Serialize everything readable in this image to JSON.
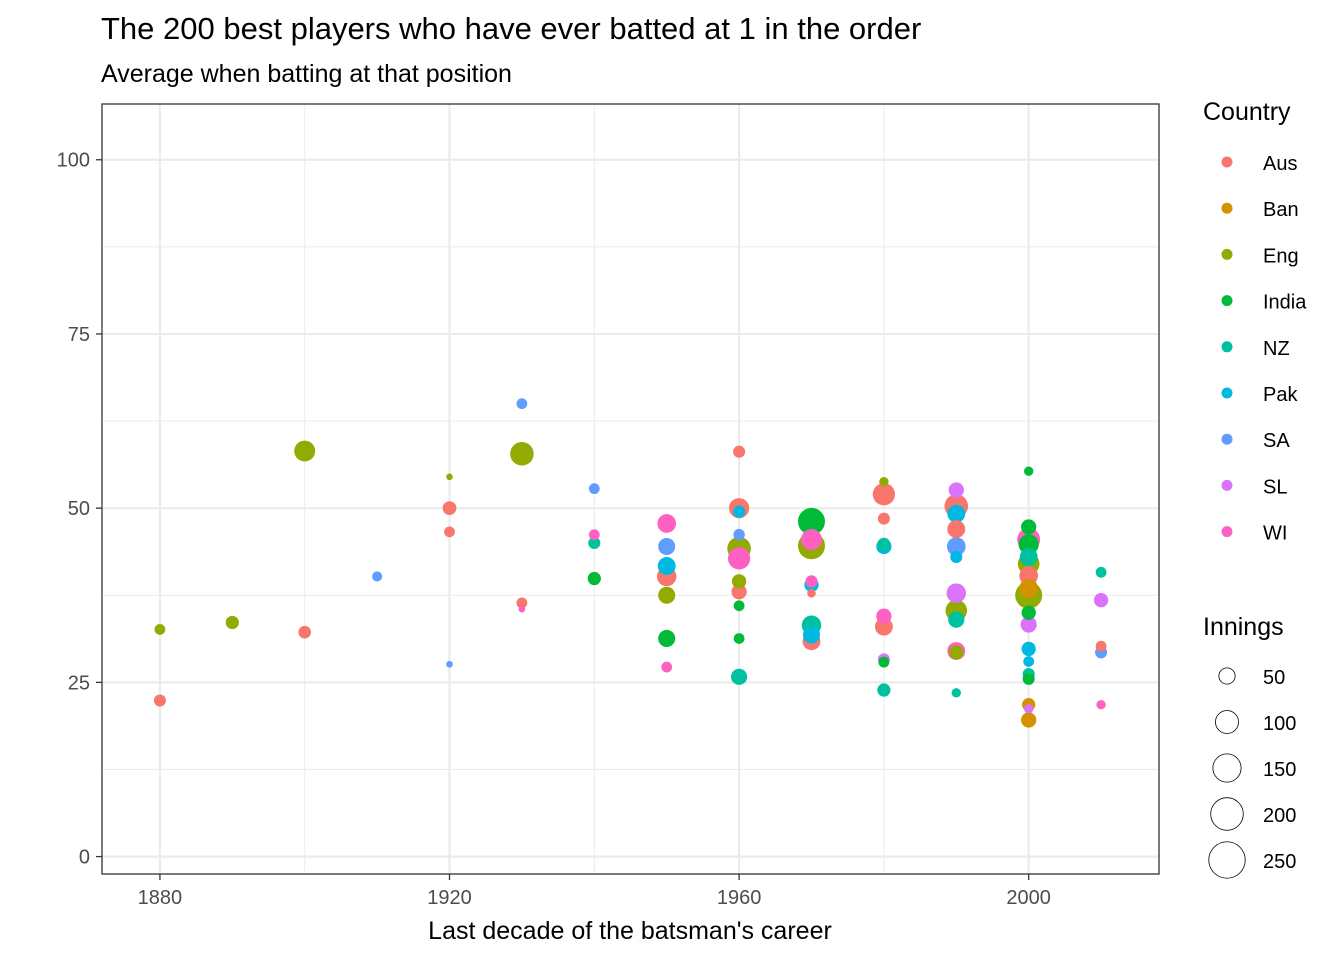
{
  "chart_data": {
    "type": "scatter",
    "title": "The 200 best players who have ever batted at 1 in the order",
    "subtitle": "Average when batting at that position",
    "xlabel": "Last decade of the batsman's career",
    "ylabel": "",
    "xlim": [
      1872,
      2018
    ],
    "ylim": [
      -2.5,
      108
    ],
    "x_ticks": [
      1880,
      1920,
      1960,
      2000
    ],
    "y_ticks": [
      0,
      25,
      50,
      75,
      100
    ],
    "grid": true,
    "legend_placement": "right",
    "color_legend": {
      "title": "Country",
      "entries": [
        {
          "label": "Aus",
          "color": "#F8766D"
        },
        {
          "label": "Ban",
          "color": "#D39200"
        },
        {
          "label": "Eng",
          "color": "#93AA00"
        },
        {
          "label": "India",
          "color": "#00BA38"
        },
        {
          "label": "NZ",
          "color": "#00C19F"
        },
        {
          "label": "Pak",
          "color": "#00B9E3"
        },
        {
          "label": "SA",
          "color": "#619CFF"
        },
        {
          "label": "SL",
          "color": "#DB72FB"
        },
        {
          "label": "WI",
          "color": "#FF61C3"
        }
      ]
    },
    "size_legend": {
      "title": "Innings",
      "entries": [
        {
          "label": "50",
          "value": 50
        },
        {
          "label": "100",
          "value": 100
        },
        {
          "label": "150",
          "value": 150
        },
        {
          "label": "200",
          "value": 200
        },
        {
          "label": "250",
          "value": 250
        }
      ]
    },
    "points": [
      {
        "x": 1880,
        "y": 22.4,
        "country": "Aus",
        "innings": 50
      },
      {
        "x": 1880,
        "y": 32.6,
        "country": "Eng",
        "innings": 40
      },
      {
        "x": 1890,
        "y": 33.6,
        "country": "Eng",
        "innings": 60
      },
      {
        "x": 1900,
        "y": 58.2,
        "country": "Eng",
        "innings": 150
      },
      {
        "x": 1900,
        "y": 32.2,
        "country": "Aus",
        "innings": 55
      },
      {
        "x": 1910,
        "y": 40.2,
        "country": "SA",
        "innings": 35
      },
      {
        "x": 1920,
        "y": 54.5,
        "country": "Eng",
        "innings": 15
      },
      {
        "x": 1920,
        "y": 50.0,
        "country": "Aus",
        "innings": 65
      },
      {
        "x": 1920,
        "y": 46.6,
        "country": "Aus",
        "innings": 40
      },
      {
        "x": 1920,
        "y": 27.6,
        "country": "SA",
        "innings": 15
      },
      {
        "x": 1930,
        "y": 65.0,
        "country": "SA",
        "innings": 40
      },
      {
        "x": 1930,
        "y": 57.8,
        "country": "Eng",
        "innings": 190
      },
      {
        "x": 1930,
        "y": 36.4,
        "country": "Aus",
        "innings": 40
      },
      {
        "x": 1930,
        "y": 35.5,
        "country": "WI",
        "innings": 15
      },
      {
        "x": 1940,
        "y": 52.8,
        "country": "SA",
        "innings": 40
      },
      {
        "x": 1940,
        "y": 46.2,
        "country": "WI",
        "innings": 40
      },
      {
        "x": 1940,
        "y": 45.0,
        "country": "NZ",
        "innings": 50
      },
      {
        "x": 1940,
        "y": 39.9,
        "country": "India",
        "innings": 60
      },
      {
        "x": 1950,
        "y": 47.8,
        "country": "WI",
        "innings": 120
      },
      {
        "x": 1950,
        "y": 44.5,
        "country": "SA",
        "innings": 100
      },
      {
        "x": 1950,
        "y": 41.7,
        "country": "Pak",
        "innings": 110
      },
      {
        "x": 1950,
        "y": 40.2,
        "country": "Aus",
        "innings": 130
      },
      {
        "x": 1950,
        "y": 37.5,
        "country": "Eng",
        "innings": 100
      },
      {
        "x": 1950,
        "y": 31.3,
        "country": "India",
        "innings": 100
      },
      {
        "x": 1950,
        "y": 27.2,
        "country": "WI",
        "innings": 40
      },
      {
        "x": 1960,
        "y": 58.1,
        "country": "Aus",
        "innings": 50
      },
      {
        "x": 1960,
        "y": 50.0,
        "country": "Aus",
        "innings": 140
      },
      {
        "x": 1960,
        "y": 49.5,
        "country": "Pak",
        "innings": 50
      },
      {
        "x": 1960,
        "y": 46.2,
        "country": "SA",
        "innings": 45
      },
      {
        "x": 1960,
        "y": 44.2,
        "country": "Eng",
        "innings": 190
      },
      {
        "x": 1960,
        "y": 42.8,
        "country": "WI",
        "innings": 170
      },
      {
        "x": 1960,
        "y": 39.5,
        "country": "Eng",
        "innings": 70
      },
      {
        "x": 1960,
        "y": 38.0,
        "country": "Aus",
        "innings": 80
      },
      {
        "x": 1960,
        "y": 36.0,
        "country": "India",
        "innings": 40
      },
      {
        "x": 1960,
        "y": 31.3,
        "country": "India",
        "innings": 40
      },
      {
        "x": 1960,
        "y": 25.8,
        "country": "NZ",
        "innings": 90
      },
      {
        "x": 1970,
        "y": 48.1,
        "country": "India",
        "innings": 250
      },
      {
        "x": 1970,
        "y": 45.5,
        "country": "WI",
        "innings": 150
      },
      {
        "x": 1970,
        "y": 44.6,
        "country": "Eng",
        "innings": 250
      },
      {
        "x": 1970,
        "y": 39.5,
        "country": "WI",
        "innings": 50
      },
      {
        "x": 1970,
        "y": 39.0,
        "country": "Pak",
        "innings": 70
      },
      {
        "x": 1970,
        "y": 37.8,
        "country": "Aus",
        "innings": 25
      },
      {
        "x": 1970,
        "y": 33.2,
        "country": "NZ",
        "innings": 130
      },
      {
        "x": 1970,
        "y": 31.8,
        "country": "Pak",
        "innings": 100
      },
      {
        "x": 1970,
        "y": 30.9,
        "country": "Aus",
        "innings": 110
      },
      {
        "x": 1980,
        "y": 53.8,
        "country": "Eng",
        "innings": 30
      },
      {
        "x": 1980,
        "y": 52.0,
        "country": "Aus",
        "innings": 170
      },
      {
        "x": 1980,
        "y": 48.5,
        "country": "Aus",
        "innings": 50
      },
      {
        "x": 1980,
        "y": 44.8,
        "country": "NZ",
        "innings": 60
      },
      {
        "x": 1980,
        "y": 44.5,
        "country": "Pak",
        "innings": 80
      },
      {
        "x": 1980,
        "y": 34.5,
        "country": "WI",
        "innings": 80
      },
      {
        "x": 1980,
        "y": 33.0,
        "country": "Aus",
        "innings": 110
      },
      {
        "x": 1980,
        "y": 28.3,
        "country": "SL",
        "innings": 50
      },
      {
        "x": 1980,
        "y": 27.9,
        "country": "India",
        "innings": 40
      },
      {
        "x": 1980,
        "y": 23.9,
        "country": "NZ",
        "innings": 60
      },
      {
        "x": 1990,
        "y": 52.6,
        "country": "SL",
        "innings": 80
      },
      {
        "x": 1990,
        "y": 50.3,
        "country": "Aus",
        "innings": 190
      },
      {
        "x": 1990,
        "y": 49.2,
        "country": "Pak",
        "innings": 110
      },
      {
        "x": 1990,
        "y": 47.0,
        "country": "Aus",
        "innings": 110
      },
      {
        "x": 1990,
        "y": 44.5,
        "country": "SA",
        "innings": 120
      },
      {
        "x": 1990,
        "y": 43.0,
        "country": "Pak",
        "innings": 50
      },
      {
        "x": 1990,
        "y": 37.8,
        "country": "SL",
        "innings": 130
      },
      {
        "x": 1990,
        "y": 35.3,
        "country": "Eng",
        "innings": 160
      },
      {
        "x": 1990,
        "y": 34.0,
        "country": "NZ",
        "innings": 90
      },
      {
        "x": 1990,
        "y": 29.5,
        "country": "WI",
        "innings": 110
      },
      {
        "x": 1990,
        "y": 29.3,
        "country": "Eng",
        "innings": 70
      },
      {
        "x": 1990,
        "y": 23.5,
        "country": "NZ",
        "innings": 30
      },
      {
        "x": 2000,
        "y": 55.3,
        "country": "India",
        "innings": 30
      },
      {
        "x": 2000,
        "y": 47.3,
        "country": "India",
        "innings": 80
      },
      {
        "x": 2000,
        "y": 45.5,
        "country": "WI",
        "innings": 180
      },
      {
        "x": 2000,
        "y": 44.8,
        "country": "India",
        "innings": 140
      },
      {
        "x": 2000,
        "y": 43.0,
        "country": "NZ",
        "innings": 110
      },
      {
        "x": 2000,
        "y": 42.0,
        "country": "Eng",
        "innings": 160
      },
      {
        "x": 2000,
        "y": 40.3,
        "country": "Aus",
        "innings": 120
      },
      {
        "x": 2000,
        "y": 38.5,
        "country": "Ban",
        "innings": 120
      },
      {
        "x": 2000,
        "y": 37.5,
        "country": "Eng",
        "innings": 250
      },
      {
        "x": 2000,
        "y": 35.0,
        "country": "India",
        "innings": 70
      },
      {
        "x": 2000,
        "y": 33.3,
        "country": "SL",
        "innings": 90
      },
      {
        "x": 2000,
        "y": 29.8,
        "country": "Pak",
        "innings": 70
      },
      {
        "x": 2000,
        "y": 28.0,
        "country": "Pak",
        "innings": 40
      },
      {
        "x": 2000,
        "y": 26.2,
        "country": "NZ",
        "innings": 50
      },
      {
        "x": 2000,
        "y": 25.5,
        "country": "India",
        "innings": 50
      },
      {
        "x": 2000,
        "y": 21.8,
        "country": "Ban",
        "innings": 60
      },
      {
        "x": 2000,
        "y": 21.2,
        "country": "SL",
        "innings": 30
      },
      {
        "x": 2000,
        "y": 19.6,
        "country": "Ban",
        "innings": 80
      },
      {
        "x": 2010,
        "y": 40.8,
        "country": "NZ",
        "innings": 40
      },
      {
        "x": 2010,
        "y": 36.8,
        "country": "SL",
        "innings": 70
      },
      {
        "x": 2010,
        "y": 30.2,
        "country": "Aus",
        "innings": 40
      },
      {
        "x": 2010,
        "y": 29.3,
        "country": "SA",
        "innings": 50
      },
      {
        "x": 2010,
        "y": 21.8,
        "country": "WI",
        "innings": 30
      }
    ]
  }
}
